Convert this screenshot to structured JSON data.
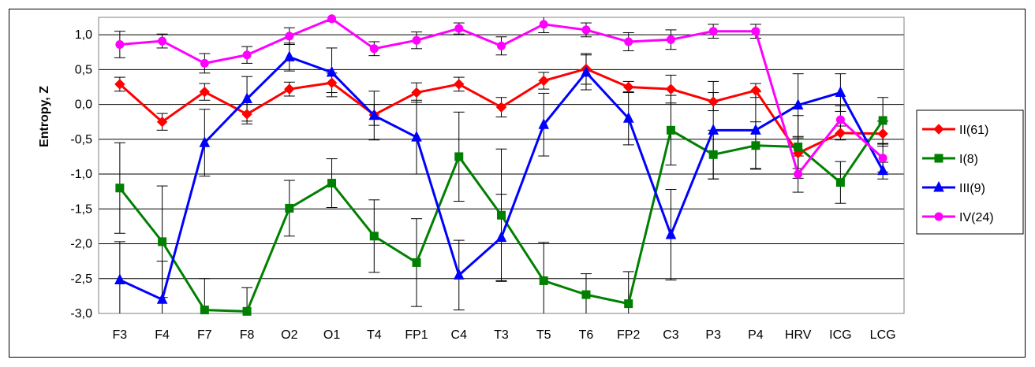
{
  "chart_data": {
    "type": "line",
    "ylabel": "Entropy, Z",
    "xlabel": "",
    "title": "",
    "ylim": [
      -3.0,
      1.25
    ],
    "yticks": [
      1.0,
      0.5,
      0.0,
      -0.5,
      -1.0,
      -1.5,
      -2.0,
      -2.5,
      -3.0
    ],
    "ytick_labels": [
      "1,0",
      "0,5",
      "0,0",
      "-0,5",
      "-1,0",
      "-1,5",
      "-2,0",
      "-2,5",
      "-3,0"
    ],
    "grid": "horizontal",
    "legend_position": "right",
    "categories": [
      "F3",
      "F4",
      "F7",
      "F8",
      "O2",
      "O1",
      "T4",
      "FP1",
      "C4",
      "T3",
      "T5",
      "T6",
      "FP2",
      "C3",
      "P3",
      "P4",
      "HRV",
      "ICG",
      "LCG"
    ],
    "series": [
      {
        "name": "II(61)",
        "color": "#ff0000",
        "marker": "diamond",
        "values": [
          0.29,
          -0.25,
          0.18,
          -0.14,
          0.22,
          0.31,
          -0.15,
          0.17,
          0.29,
          -0.04,
          0.34,
          0.51,
          0.25,
          0.22,
          0.04,
          0.2,
          -0.7,
          -0.41,
          -0.42
        ],
        "err": [
          0.1,
          0.12,
          0.12,
          0.14,
          0.1,
          0.14,
          0.15,
          0.14,
          0.1,
          0.14,
          0.12,
          0.22,
          0.08,
          0.2,
          0.13,
          0.1,
          0.22,
          0.1,
          0.18
        ]
      },
      {
        "name": "I(8)",
        "color": "#008000",
        "marker": "square",
        "values": [
          -1.2,
          -1.97,
          -2.95,
          -2.97,
          -1.49,
          -1.13,
          -1.89,
          -2.27,
          -0.75,
          -1.59,
          -2.53,
          -2.73,
          -2.86,
          -0.37,
          -0.72,
          -0.59,
          -0.61,
          -1.12,
          -0.23
        ],
        "err": [
          0.65,
          0.8,
          0.45,
          0.34,
          0.4,
          0.35,
          0.52,
          0.63,
          0.64,
          0.95,
          0.55,
          0.3,
          0.46,
          0.5,
          0.35,
          0.34,
          0.45,
          0.3,
          0.33
        ]
      },
      {
        "name": "III(9)",
        "color": "#0000ff",
        "marker": "triangle",
        "values": [
          -2.52,
          -2.8,
          -0.55,
          0.08,
          0.68,
          0.46,
          -0.16,
          -0.47,
          -2.45,
          -1.91,
          -0.29,
          0.46,
          -0.2,
          -1.87,
          -0.37,
          -0.37,
          -0.01,
          0.17,
          -0.95
        ],
        "err": [
          0.55,
          0.55,
          0.48,
          0.32,
          0.2,
          0.35,
          0.35,
          0.53,
          0.5,
          0.62,
          0.45,
          0.25,
          0.38,
          0.65,
          0.7,
          0.55,
          0.45,
          0.27,
          0.12
        ]
      },
      {
        "name": "IV(24)",
        "color": "#ff00ff",
        "marker": "circle",
        "values": [
          0.86,
          0.91,
          0.59,
          0.71,
          0.98,
          1.23,
          0.8,
          0.92,
          1.09,
          0.84,
          1.15,
          1.07,
          0.9,
          0.93,
          1.05,
          1.05,
          -1.0,
          -0.22,
          -0.77
        ],
        "err": [
          0.19,
          0.1,
          0.14,
          0.12,
          0.12,
          0.04,
          0.1,
          0.12,
          0.08,
          0.13,
          0.12,
          0.1,
          0.13,
          0.14,
          0.1,
          0.1,
          0.26,
          0.2,
          0.2
        ]
      }
    ]
  }
}
